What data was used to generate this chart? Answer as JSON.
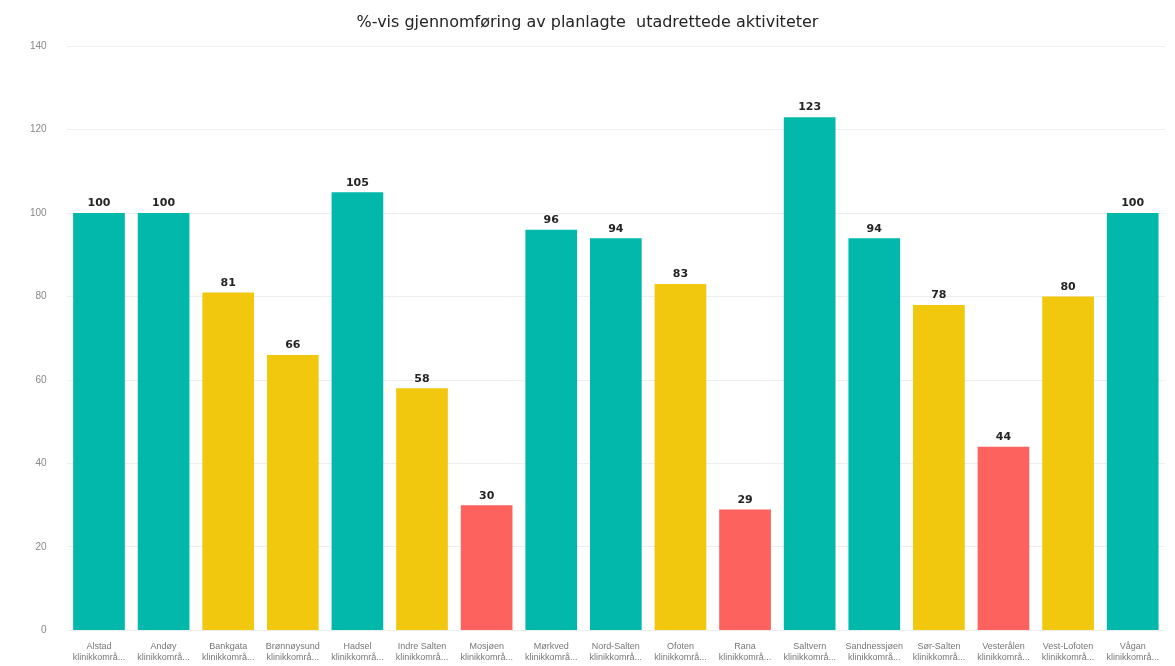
{
  "chart_data": {
    "type": "bar",
    "title": "%-vis gjennomføring av planlagte  utadrettede aktiviteter",
    "categories": [
      "Alstad klinikkområ...",
      "Andøy klinikkområ...",
      "Bankgata klinikkområ...",
      "Brønnøysund klinikkområ...",
      "Hadsel klinikkområ...",
      "Indre Salten klinikkområ...",
      "Mosjøen klinikkområ...",
      "Mørkved klinikkområ...",
      "Nord-Salten klinikkområ...",
      "Ofoten klinikkområ...",
      "Rana klinikkområ...",
      "Saltvern klinikkområ...",
      "Sandnessjøen klinikkområ...",
      "Sør-Salten klinikkområ...",
      "Vesterålen klinikkområ...",
      "Vest-Lofoten klinikkområ...",
      "Vågan klinikkområ..."
    ],
    "values": [
      100,
      100,
      81,
      66,
      105,
      58,
      30,
      96,
      94,
      83,
      29,
      123,
      94,
      78,
      44,
      80,
      100
    ],
    "colors": [
      "#01b8aa",
      "#01b8aa",
      "#f2c80f",
      "#f2c80f",
      "#01b8aa",
      "#f2c80f",
      "#fd625e",
      "#01b8aa",
      "#01b8aa",
      "#f2c80f",
      "#fd625e",
      "#01b8aa",
      "#01b8aa",
      "#f2c80f",
      "#fd625e",
      "#f2c80f",
      "#01b8aa"
    ],
    "ylim": [
      0,
      140
    ],
    "yticks": [
      0,
      20,
      40,
      60,
      80,
      100,
      120,
      140
    ],
    "grid": "y",
    "data_labels": true
  }
}
